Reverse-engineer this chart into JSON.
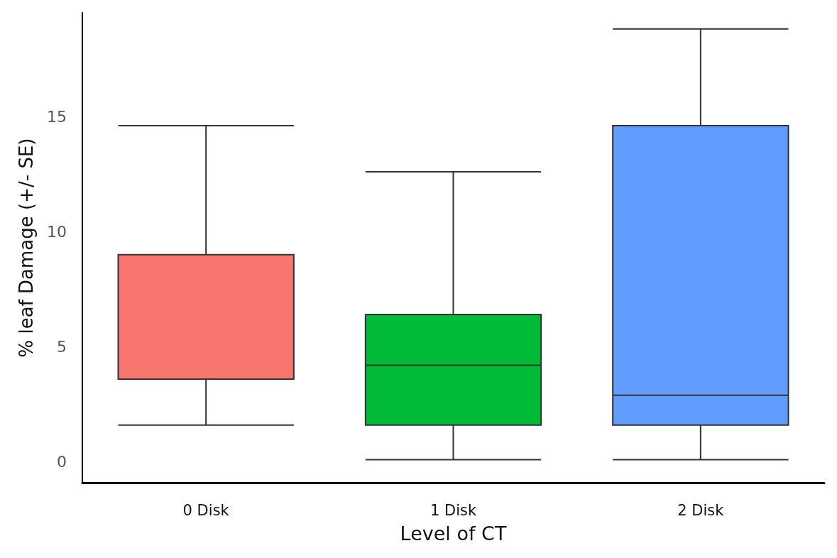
{
  "chart_data": {
    "type": "box",
    "xlabel": "Level of CT",
    "ylabel": "% leaf Damage (+/- SE)",
    "categories": [
      "0 Disk",
      "1 Disk",
      "2 Disk"
    ],
    "colors": [
      "#f8766d",
      "#00ba38",
      "#619cff"
    ],
    "boxes": [
      {
        "low": 1.6,
        "q1": 3.6,
        "median": 9.0,
        "q3": 9.0,
        "high": 14.6
      },
      {
        "low": 0.1,
        "q1": 1.6,
        "median": 4.2,
        "q3": 6.4,
        "high": 12.6
      },
      {
        "low": 0.1,
        "q1": 1.6,
        "median": 2.9,
        "q3": 14.6,
        "high": 18.8
      }
    ],
    "ylim": [
      -0.9,
      19.5
    ],
    "yticks": [
      0,
      5,
      10,
      15
    ],
    "grid": false
  }
}
